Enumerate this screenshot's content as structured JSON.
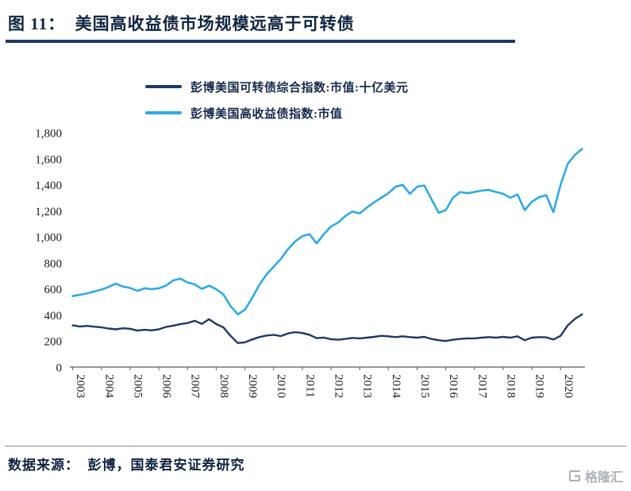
{
  "header": {
    "title": "图 11：  美国高收益债市场规模远高于可转债"
  },
  "footer": {
    "source": "数据来源：  彭博，国泰君安证券研究",
    "logo_text": "格隆汇"
  },
  "chart_data": {
    "type": "line",
    "title": "",
    "xlabel": "",
    "ylabel": "",
    "grid": false,
    "legend_position": "top",
    "ylim": [
      0,
      1800
    ],
    "yticks": [
      0,
      200,
      400,
      600,
      800,
      1000,
      1200,
      1400,
      1600,
      1800
    ],
    "ytick_labels": [
      "0",
      "200",
      "400",
      "600",
      "800",
      "1,000",
      "1,200",
      "1,400",
      "1,600",
      "1,800"
    ],
    "x_tick_labels": [
      "2003",
      "2004",
      "2005",
      "2006",
      "2007",
      "2008",
      "2009",
      "2010",
      "2011",
      "2012",
      "2013",
      "2014",
      "2015",
      "2016",
      "2017",
      "2018",
      "2019",
      "2020"
    ],
    "xlim": [
      2002.9,
      2020.85
    ],
    "x_start": 2003,
    "x_step": 0.25,
    "series": [
      {
        "name": "彭博美国可转债综合指数:市值:十亿美元",
        "color": "#1F3864",
        "width": 2.4,
        "values": [
          320,
          312,
          316,
          310,
          305,
          296,
          290,
          298,
          294,
          280,
          286,
          282,
          290,
          308,
          318,
          330,
          338,
          355,
          332,
          368,
          330,
          305,
          240,
          185,
          190,
          212,
          230,
          242,
          248,
          238,
          258,
          268,
          262,
          248,
          222,
          226,
          214,
          210,
          216,
          224,
          220,
          226,
          232,
          240,
          236,
          230,
          236,
          230,
          226,
          232,
          216,
          206,
          200,
          210,
          216,
          220,
          220,
          226,
          230,
          226,
          232,
          226,
          236,
          206,
          226,
          230,
          228,
          212,
          240,
          320,
          370,
          405
        ]
      },
      {
        "name": "彭博美国高收益债指数:市值",
        "color": "#2EAAE4",
        "width": 2.6,
        "values": [
          545,
          555,
          565,
          580,
          595,
          615,
          640,
          618,
          608,
          585,
          605,
          598,
          605,
          625,
          665,
          680,
          650,
          635,
          600,
          625,
          598,
          558,
          468,
          405,
          440,
          530,
          630,
          710,
          770,
          830,
          905,
          965,
          1005,
          1020,
          950,
          1020,
          1080,
          1110,
          1160,
          1195,
          1180,
          1225,
          1265,
          1300,
          1335,
          1385,
          1400,
          1330,
          1385,
          1395,
          1290,
          1185,
          1205,
          1300,
          1345,
          1335,
          1345,
          1355,
          1360,
          1345,
          1330,
          1300,
          1325,
          1205,
          1270,
          1305,
          1320,
          1190,
          1400,
          1560,
          1630,
          1675
        ]
      }
    ],
    "axis_color": "#595959"
  }
}
